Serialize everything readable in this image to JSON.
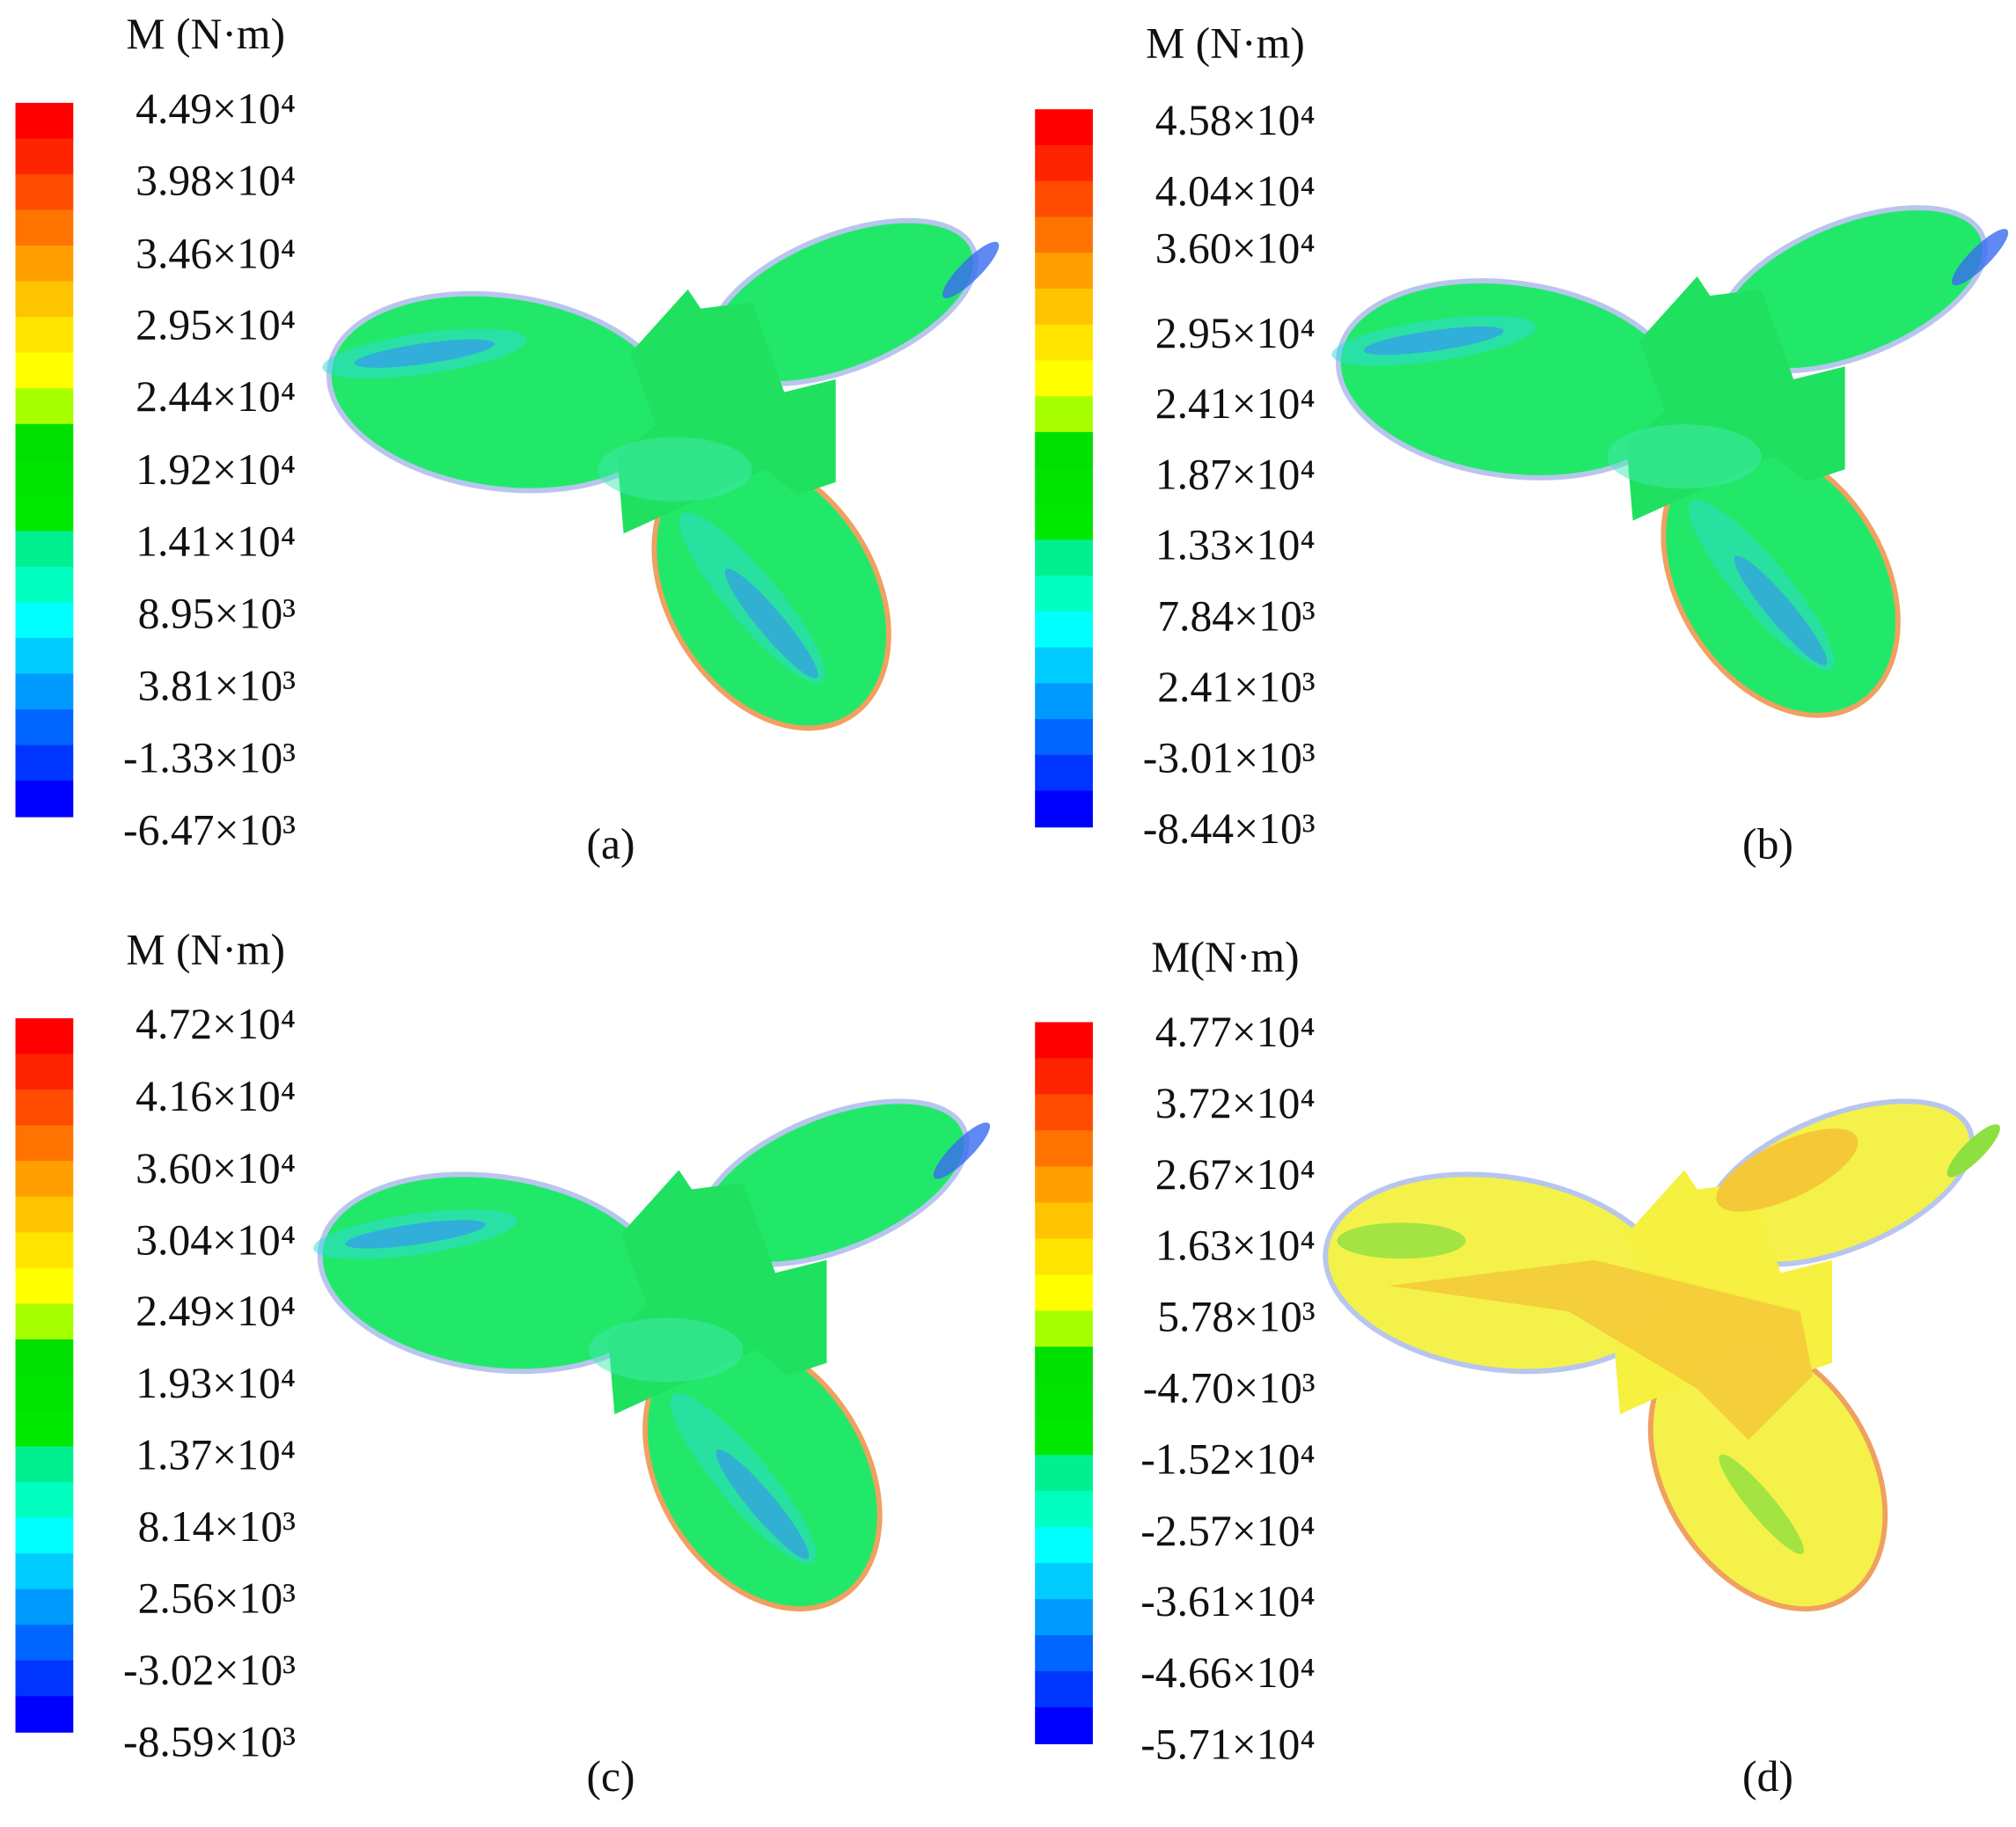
{
  "chart_data": [
    {
      "type": "contour",
      "title": "M (N·m)",
      "caption": "(a)",
      "colormap": [
        "#ff0000",
        "#ff2400",
        "#ff4c00",
        "#ff7400",
        "#ffa000",
        "#ffc400",
        "#ffe400",
        "#ffff00",
        "#a8ff00",
        "#00e000",
        "#00e400",
        "#00e800",
        "#00f090",
        "#00ffc0",
        "#00ffff",
        "#00ccff",
        "#009aff",
        "#0066ff",
        "#0034ff",
        "#0000ff"
      ],
      "ylim": [
        -6470,
        44900
      ],
      "yticks": [
        {
          "value": 44900,
          "label": "4.49×10⁴"
        },
        {
          "value": 39800,
          "label": "3.98×10⁴"
        },
        {
          "value": 34600,
          "label": "3.46×10⁴"
        },
        {
          "value": 29500,
          "label": "2.95×10⁴"
        },
        {
          "value": 24400,
          "label": "2.44×10⁴"
        },
        {
          "value": 19200,
          "label": "1.92×10⁴"
        },
        {
          "value": 14100,
          "label": "1.41×10⁴"
        },
        {
          "value": 8950,
          "label": "8.95×10³"
        },
        {
          "value": 3810,
          "label": "3.81×10³"
        },
        {
          "value": -1330,
          "label": "-1.33×10³"
        },
        {
          "value": -6470,
          "label": "-6.47×10³"
        }
      ]
    },
    {
      "type": "contour",
      "title": "M (N·m)",
      "caption": "(b)",
      "colormap": [
        "#ff0000",
        "#ff2400",
        "#ff4c00",
        "#ff7400",
        "#ffa000",
        "#ffc400",
        "#ffe400",
        "#ffff00",
        "#a8ff00",
        "#00e000",
        "#00e400",
        "#00e800",
        "#00f090",
        "#00ffc0",
        "#00ffff",
        "#00ccff",
        "#009aff",
        "#0066ff",
        "#0034ff",
        "#0000ff"
      ],
      "ylim": [
        -8440,
        45800
      ],
      "yticks": [
        {
          "value": 45800,
          "label": "4.58×10⁴"
        },
        {
          "value": 40400,
          "label": "4.04×10⁴"
        },
        {
          "value": 36000,
          "label": "3.60×10⁴"
        },
        {
          "value": 29500,
          "label": "2.95×10⁴"
        },
        {
          "value": 24100,
          "label": "2.41×10⁴"
        },
        {
          "value": 18700,
          "label": "1.87×10⁴"
        },
        {
          "value": 13300,
          "label": "1.33×10⁴"
        },
        {
          "value": 7840,
          "label": "7.84×10³"
        },
        {
          "value": 2410,
          "label": "2.41×10³"
        },
        {
          "value": -3010,
          "label": "-3.01×10³"
        },
        {
          "value": -8440,
          "label": "-8.44×10³"
        }
      ]
    },
    {
      "type": "contour",
      "title": "M (N·m)",
      "caption": "(c)",
      "colormap": [
        "#ff0000",
        "#ff2400",
        "#ff4c00",
        "#ff7400",
        "#ffa000",
        "#ffc400",
        "#ffe400",
        "#ffff00",
        "#a8ff00",
        "#00e000",
        "#00e400",
        "#00e800",
        "#00f090",
        "#00ffc0",
        "#00ffff",
        "#00ccff",
        "#009aff",
        "#0066ff",
        "#0034ff",
        "#0000ff"
      ],
      "ylim": [
        -8590,
        47200
      ],
      "yticks": [
        {
          "value": 47200,
          "label": "4.72×10⁴"
        },
        {
          "value": 41600,
          "label": "4.16×10⁴"
        },
        {
          "value": 36000,
          "label": "3.60×10⁴"
        },
        {
          "value": 30400,
          "label": "3.04×10⁴"
        },
        {
          "value": 24900,
          "label": "2.49×10⁴"
        },
        {
          "value": 19300,
          "label": "1.93×10⁴"
        },
        {
          "value": 13700,
          "label": "1.37×10⁴"
        },
        {
          "value": 8140,
          "label": "8.14×10³"
        },
        {
          "value": 2560,
          "label": "2.56×10³"
        },
        {
          "value": -3020,
          "label": "-3.02×10³"
        },
        {
          "value": -8590,
          "label": "-8.59×10³"
        }
      ]
    },
    {
      "type": "contour",
      "title": "M(N·m)",
      "caption": "(d)",
      "colormap": [
        "#ff0000",
        "#ff2400",
        "#ff4c00",
        "#ff7400",
        "#ffa000",
        "#ffc400",
        "#ffe400",
        "#ffff00",
        "#a8ff00",
        "#00e000",
        "#00e400",
        "#00e800",
        "#00f090",
        "#00ffc0",
        "#00ffff",
        "#00ccff",
        "#009aff",
        "#0066ff",
        "#0034ff",
        "#0000ff"
      ],
      "ylim": [
        -57100,
        47700
      ],
      "yticks": [
        {
          "value": 47700,
          "label": "4.77×10⁴"
        },
        {
          "value": 37200,
          "label": "3.72×10⁴"
        },
        {
          "value": 26700,
          "label": "2.67×10⁴"
        },
        {
          "value": 16300,
          "label": "1.63×10⁴"
        },
        {
          "value": 5780,
          "label": "5.78×10³"
        },
        {
          "value": -4700,
          "label": "-4.70×10³"
        },
        {
          "value": -15200,
          "label": "-1.52×10⁴"
        },
        {
          "value": -25700,
          "label": "-2.57×10⁴"
        },
        {
          "value": -36100,
          "label": "-3.61×10⁴"
        },
        {
          "value": -46600,
          "label": "-4.66×10⁴"
        },
        {
          "value": -57100,
          "label": "-5.71×10⁴"
        }
      ]
    }
  ]
}
